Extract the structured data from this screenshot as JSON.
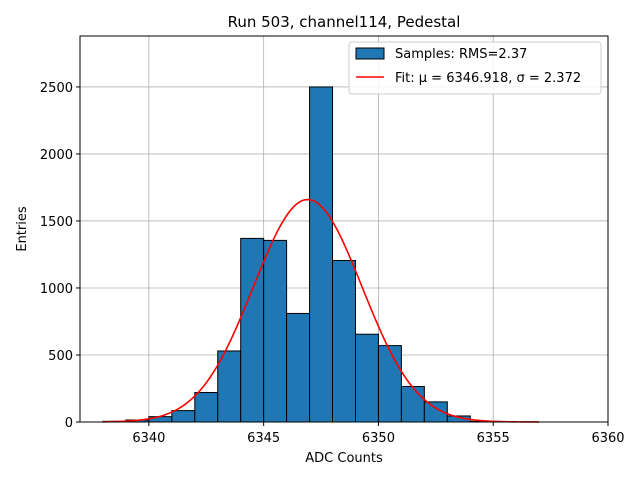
{
  "chart_data": {
    "type": "bar",
    "title": "Run 503, channel114, Pedestal",
    "xlabel": "ADC Counts",
    "ylabel": "Entries",
    "xlim": [
      6337,
      6360
    ],
    "ylim": [
      0,
      2880
    ],
    "grid": true,
    "xticks": [
      6340,
      6345,
      6350,
      6355,
      6360
    ],
    "yticks": [
      0,
      500,
      1000,
      1500,
      2000,
      2500
    ],
    "histogram": {
      "name": "Samples: RMS=2.37",
      "bin_width": 1,
      "bin_starts": [
        6338,
        6339,
        6340,
        6341,
        6342,
        6343,
        6344,
        6345,
        6346,
        6347,
        6348,
        6349,
        6350,
        6351,
        6352,
        6353,
        6354,
        6355
      ],
      "values": [
        5,
        15,
        40,
        85,
        220,
        530,
        1370,
        1355,
        810,
        2500,
        1205,
        655,
        570,
        265,
        150,
        45,
        5,
        2
      ],
      "color": "#1f77b4",
      "edge_color": "#000000"
    },
    "fit": {
      "name": "Fit: μ = 6346.918, σ = 2.372",
      "label_prefix": "Fit: ",
      "mu_label": "μ = 6346.918",
      "sigma_label": "σ = 2.372",
      "mu": 6346.918,
      "sigma": 2.372,
      "amplitude": 1660,
      "x_range": [
        6338,
        6357
      ],
      "color": "#ff0000"
    },
    "legend_position": "top-right"
  }
}
